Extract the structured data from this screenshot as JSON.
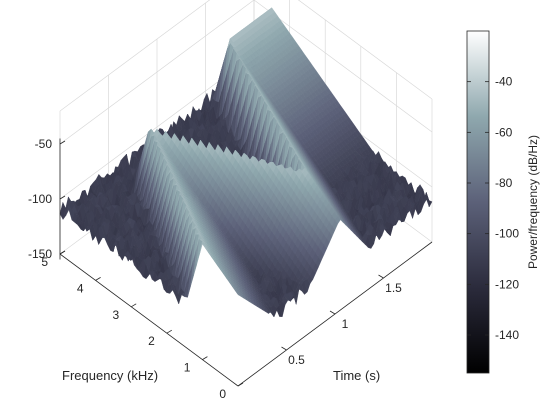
{
  "chart_data": {
    "type": "surface",
    "description_axes": {
      "x": "Time (s)",
      "y": "Frequency (kHz)",
      "z": "Power/frequency (dB/Hz)"
    },
    "xlabel": "Time (s)",
    "ylabel": "Frequency (kHz)",
    "colorbar_label": "Power/frequency (dB/Hz)",
    "time_ticks": [
      "0.5",
      "1",
      "1.5"
    ],
    "time_tick_values": [
      0.5,
      1,
      1.5
    ],
    "time_range": [
      0,
      2
    ],
    "freq_ticks": [
      "0",
      "1",
      "2",
      "3",
      "4",
      "5"
    ],
    "freq_tick_values": [
      0,
      1,
      2,
      3,
      4,
      5
    ],
    "freq_range": [
      0,
      5
    ],
    "z_ticks": [
      "-50",
      "-100",
      "-150"
    ],
    "z_tick_values": [
      -50,
      -100,
      -150
    ],
    "z_range": [
      -155,
      -20
    ],
    "colorbar_ticks": [
      "-40",
      "-60",
      "-80",
      "-100",
      "-120",
      "-140"
    ],
    "colorbar_tick_values": [
      -40,
      -60,
      -80,
      -100,
      -120,
      -140
    ],
    "colorbar_range": [
      -155,
      -20
    ],
    "colormap": "bone",
    "noise_floor_db": -110,
    "ridge_db": -45,
    "ridge_path": {
      "description": "frequency of chirp ridge vs time (zig-zag sweep)",
      "points": [
        {
          "t": 0.0,
          "f": 1.0
        },
        {
          "t": 0.55,
          "f": 4.0
        },
        {
          "t": 1.05,
          "f": 1.0
        },
        {
          "t": 1.55,
          "f": 4.5
        },
        {
          "t": 2.0,
          "f": 4.5
        }
      ]
    }
  }
}
